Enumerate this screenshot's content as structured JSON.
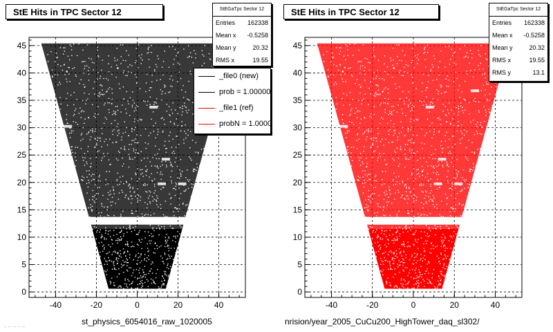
{
  "panels": [
    {
      "title": "StE Hits in TPC Sector 12",
      "stats": {
        "name": "StEGaTpc Sector 12",
        "rows": [
          {
            "label": "Entries",
            "value": "162338"
          },
          {
            "label": "Mean x",
            "value": "-0.5258"
          },
          {
            "label": "Mean y",
            "value": "20.32"
          },
          {
            "label": "RMS x",
            "value": "19.55"
          }
        ]
      },
      "footer": "st_physics_6054016_raw_1020005",
      "marker_color": "#000000"
    },
    {
      "title": "StE Hits in TPC Sector 12",
      "stats": {
        "name": "StEGaTpc Sector 12",
        "rows": [
          {
            "label": "Entries",
            "value": "162338"
          },
          {
            "label": "Mean x",
            "value": "-0.5258"
          },
          {
            "label": "Mean y",
            "value": "20.32"
          },
          {
            "label": "RMS x",
            "value": "19.55"
          },
          {
            "label": "RMS y",
            "value": "13.1"
          }
        ]
      },
      "footer": "nrision/year_2005_CuCu200_HighTower_daq_sl302/",
      "marker_color": "#ff0000"
    }
  ],
  "legend": [
    {
      "label": "_file0 (new)",
      "color": "#000000"
    },
    {
      "label": "prob = 1.000000",
      "color": "#000000"
    },
    {
      "label": "_file1 (ref)",
      "color": "#ff0000"
    },
    {
      "label": "probN = 1.000000",
      "color": "#ff0000"
    }
  ],
  "footer_faint": "·· ·· ··· ·· ···",
  "chart_data": [
    {
      "type": "scatter",
      "title": "StE Hits in TPC Sector 12",
      "xlabel": "",
      "ylabel": "",
      "xlim": [
        -53,
        53
      ],
      "ylim": [
        -1,
        46.5
      ],
      "xticks": [
        -40,
        -20,
        0,
        20,
        40
      ],
      "yticks": [
        0,
        5,
        10,
        15,
        20,
        25,
        30,
        35,
        40,
        45
      ],
      "grid": true,
      "legend_position": "top-right",
      "series": [
        {
          "name": "_file0 (new)",
          "color": "#000000",
          "region": {
            "y_min": 0.6,
            "y_max": 45.4,
            "half_width_at_y_min": 14,
            "half_width_at_y_max": 47,
            "gap_y": [
              12.3,
              13.7
            ]
          }
        }
      ]
    },
    {
      "type": "scatter",
      "title": "StE Hits in TPC Sector 12",
      "xlabel": "",
      "ylabel": "",
      "xlim": [
        -53,
        53
      ],
      "ylim": [
        -1,
        46.5
      ],
      "xticks": [
        -40,
        -20,
        0,
        20,
        40
      ],
      "yticks": [
        0,
        5,
        10,
        15,
        20,
        25,
        30,
        35,
        40,
        45
      ],
      "grid": true,
      "series": [
        {
          "name": "_file1 (ref)",
          "color": "#ff0000",
          "region": {
            "y_min": 0.6,
            "y_max": 45.4,
            "half_width_at_y_min": 14,
            "half_width_at_y_max": 47,
            "gap_y": [
              12.3,
              13.7
            ]
          }
        }
      ]
    }
  ]
}
